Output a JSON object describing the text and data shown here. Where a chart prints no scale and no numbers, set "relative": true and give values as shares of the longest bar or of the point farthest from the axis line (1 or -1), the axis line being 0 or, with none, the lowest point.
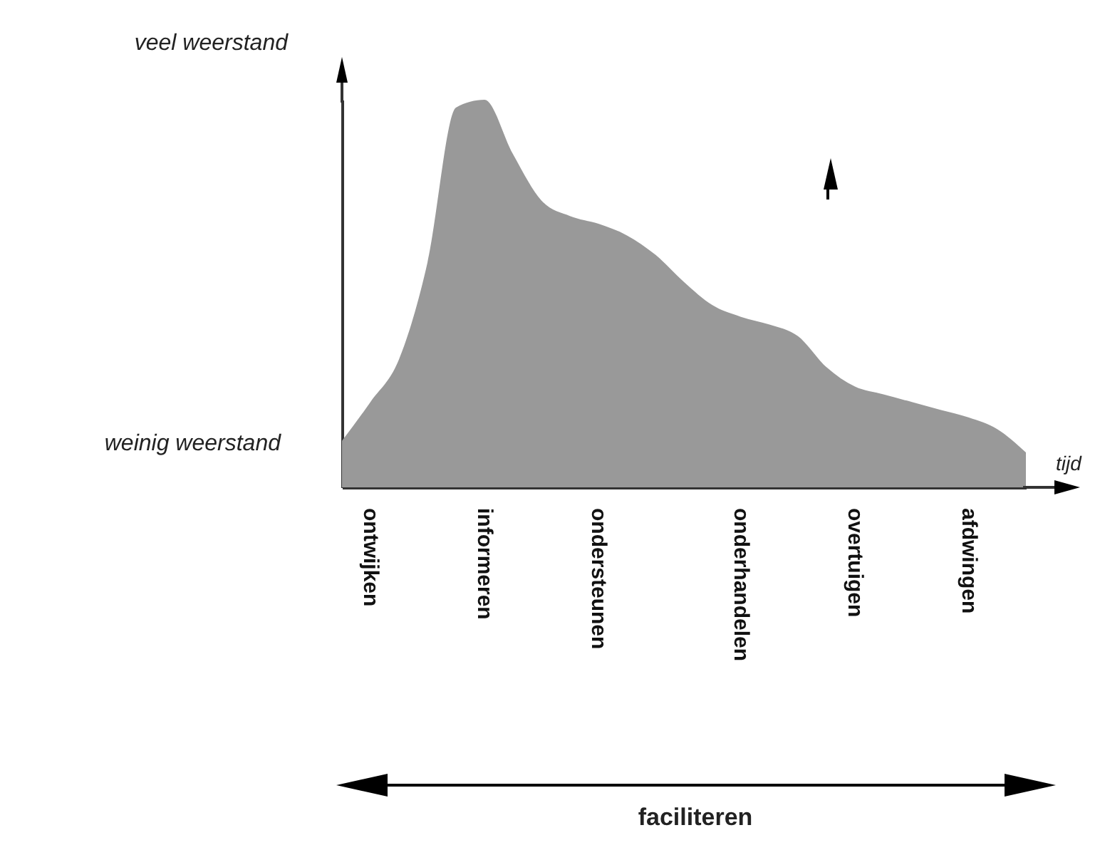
{
  "chart_data": {
    "type": "area",
    "relative": true,
    "color": "#999999",
    "xlabel": "tijd",
    "categories": [
      null,
      "ontwijken",
      null,
      null,
      null,
      "informeren",
      null,
      null,
      null,
      "ondersteunen",
      null,
      null,
      null,
      null,
      "onderhandelen",
      null,
      null,
      null,
      "overtuigen",
      null,
      null,
      null,
      "afdwingen",
      null,
      null
    ],
    "values": [
      0.12,
      0.22,
      0.33,
      0.58,
      0.98,
      1.0,
      0.86,
      0.74,
      0.7,
      0.68,
      0.65,
      0.6,
      0.53,
      0.47,
      0.44,
      0.42,
      0.39,
      0.31,
      0.26,
      0.24,
      0.22,
      0.2,
      0.18,
      0.15,
      0.09
    ],
    "annotations": [
      "veel weerstand",
      "weinig weerstand",
      "faciliteren"
    ]
  }
}
